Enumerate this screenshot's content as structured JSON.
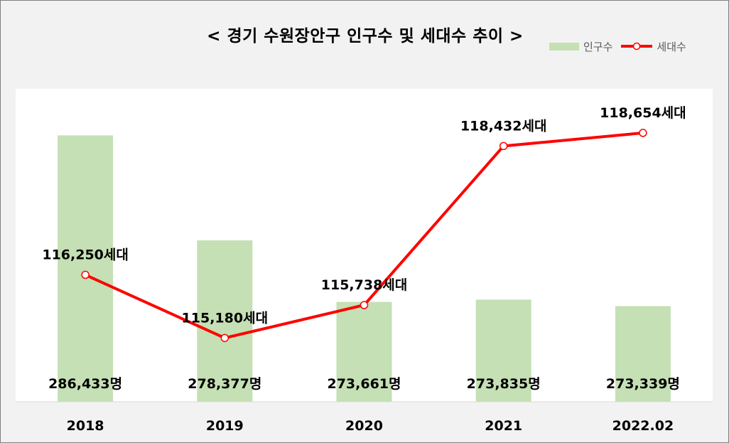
{
  "chart_data": {
    "type": "bar",
    "title": "< 경기 수원장안구 인구수 및 세대수 추이 >",
    "categories": [
      "2018",
      "2019",
      "2020",
      "2021",
      "2022.02"
    ],
    "series": [
      {
        "name": "인구수",
        "kind": "bar",
        "values": [
          286433,
          278377,
          273661,
          273835,
          273339
        ],
        "labels": [
          "286,433명",
          "278,377명",
          "273,661명",
          "273,835명",
          "273,339명"
        ],
        "color": "#c5e0b4",
        "axis_range": [
          266000,
          290000
        ]
      },
      {
        "name": "세대수",
        "kind": "line",
        "values": [
          116250,
          115180,
          115738,
          118432,
          118654
        ],
        "labels": [
          "116,250세대",
          "115,180세대",
          "115,738세대",
          "118,432세대",
          "118,654세대"
        ],
        "color": "#ff0000",
        "axis_range": [
          114100,
          119400
        ]
      }
    ],
    "legend_position": "top-right",
    "grid": false
  }
}
